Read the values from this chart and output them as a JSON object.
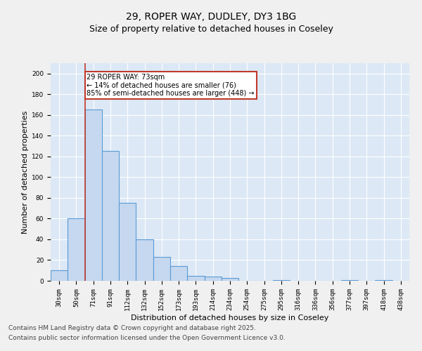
{
  "title_line1": "29, ROPER WAY, DUDLEY, DY3 1BG",
  "title_line2": "Size of property relative to detached houses in Coseley",
  "xlabel": "Distribution of detached houses by size in Coseley",
  "ylabel": "Number of detached properties",
  "categories": [
    "30sqm",
    "50sqm",
    "71sqm",
    "91sqm",
    "112sqm",
    "132sqm",
    "152sqm",
    "173sqm",
    "193sqm",
    "214sqm",
    "234sqm",
    "254sqm",
    "275sqm",
    "295sqm",
    "316sqm",
    "336sqm",
    "356sqm",
    "377sqm",
    "397sqm",
    "418sqm",
    "438sqm"
  ],
  "values": [
    10,
    60,
    165,
    125,
    75,
    40,
    23,
    14,
    5,
    4,
    3,
    0,
    0,
    1,
    0,
    0,
    0,
    1,
    0,
    1,
    0
  ],
  "bar_color": "#c5d8f0",
  "bar_edge_color": "#5b9bd5",
  "bar_edge_width": 0.8,
  "vline_x": 1.5,
  "vline_color": "#c0392b",
  "vline_linewidth": 1.2,
  "annotation_text": "29 ROPER WAY: 73sqm\n← 14% of detached houses are smaller (76)\n85% of semi-detached houses are larger (448) →",
  "annotation_box_color": "#c0392b",
  "annotation_text_color": "#000000",
  "ylim": [
    0,
    210
  ],
  "yticks": [
    0,
    20,
    40,
    60,
    80,
    100,
    120,
    140,
    160,
    180,
    200
  ],
  "background_color": "#dce8f5",
  "grid_color": "#ffffff",
  "footer_line1": "Contains HM Land Registry data © Crown copyright and database right 2025.",
  "footer_line2": "Contains public sector information licensed under the Open Government Licence v3.0.",
  "title_fontsize": 10,
  "subtitle_fontsize": 9,
  "axis_label_fontsize": 8,
  "tick_fontsize": 6.5,
  "annotation_fontsize": 7,
  "footer_fontsize": 6.5
}
